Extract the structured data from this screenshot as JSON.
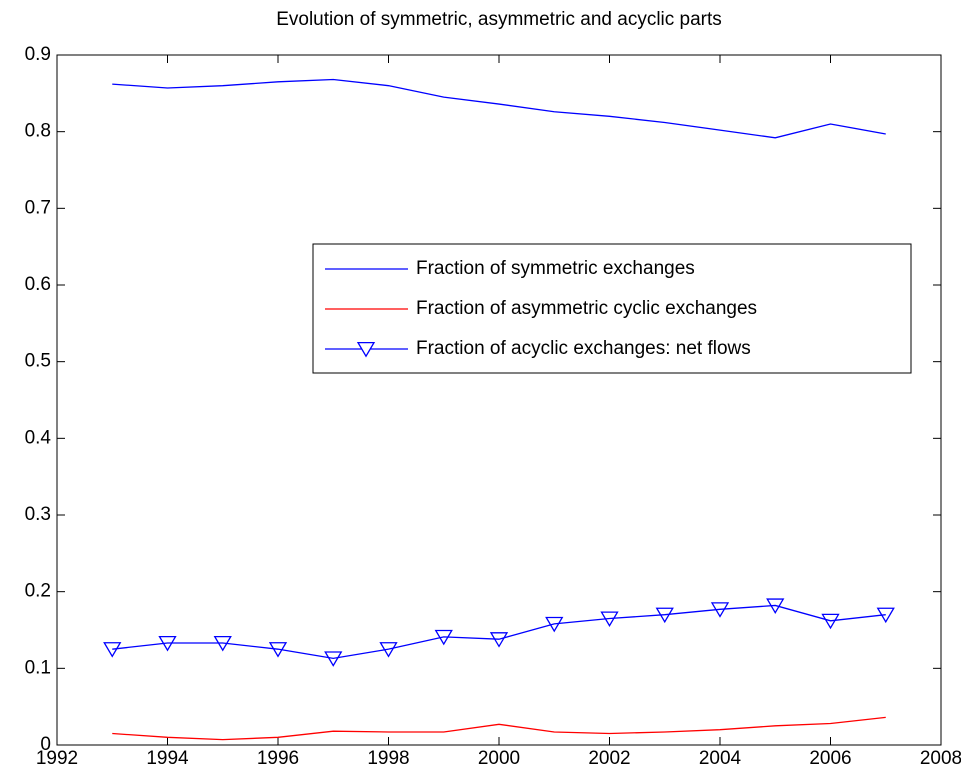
{
  "chart_data": {
    "type": "line",
    "title": "Evolution of symmetric, asymmetric and acyclic parts",
    "x": [
      1993,
      1994,
      1995,
      1996,
      1997,
      1998,
      1999,
      2000,
      2001,
      2002,
      2003,
      2004,
      2005,
      2006,
      2007
    ],
    "series": [
      {
        "name": "Fraction of symmetric exchanges",
        "color": "#0000ff",
        "marker": "none",
        "values": [
          0.862,
          0.857,
          0.86,
          0.865,
          0.868,
          0.86,
          0.845,
          0.836,
          0.826,
          0.82,
          0.812,
          0.802,
          0.792,
          0.81,
          0.797
        ]
      },
      {
        "name": "Fraction of asymmetric cyclic exchanges",
        "color": "#ff0000",
        "marker": "none",
        "values": [
          0.015,
          0.01,
          0.007,
          0.01,
          0.018,
          0.017,
          0.017,
          0.027,
          0.017,
          0.015,
          0.017,
          0.02,
          0.025,
          0.028,
          0.036
        ]
      },
      {
        "name": "Fraction of acyclic exchanges: net flows",
        "color": "#0000ff",
        "marker": "triangle-down",
        "values": [
          0.125,
          0.133,
          0.133,
          0.125,
          0.113,
          0.125,
          0.141,
          0.138,
          0.158,
          0.165,
          0.17,
          0.177,
          0.182,
          0.162,
          0.17
        ]
      }
    ],
    "xlim": [
      1992,
      2008
    ],
    "xticks": [
      1992,
      1994,
      1996,
      1998,
      2000,
      2002,
      2004,
      2006,
      2008
    ],
    "ylim": [
      0,
      0.9
    ],
    "yticks": [
      0,
      0.1,
      0.2,
      0.3,
      0.4,
      0.5,
      0.6,
      0.7,
      0.8,
      0.9
    ]
  }
}
